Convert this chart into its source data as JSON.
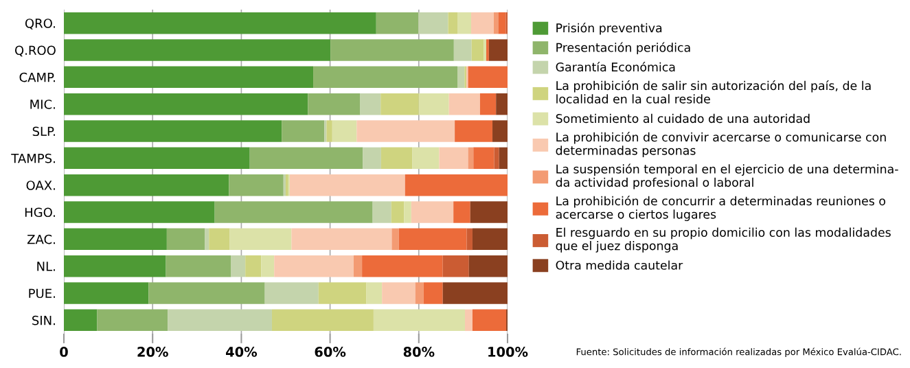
{
  "chart_data": {
    "type": "bar",
    "orientation": "horizontal",
    "stacked": true,
    "categories": [
      "QRO.",
      "Q.ROO",
      "CAMP.",
      "MIC.",
      "SLP.",
      "TAMPS.",
      "OAX.",
      "HGO.",
      "ZAC.",
      "NL.",
      "PUE.",
      "SIN."
    ],
    "series": [
      {
        "name": "Prisión preventiva",
        "color": "#4e9a35",
        "values": [
          70.4,
          60.1,
          56.2,
          55.0,
          49.1,
          41.9,
          37.2,
          34.0,
          23.2,
          23.0,
          19.1,
          7.5
        ]
      },
      {
        "name": "Presentación periódica",
        "color": "#8fb56b",
        "values": [
          9.5,
          27.8,
          32.5,
          11.8,
          9.6,
          25.5,
          12.3,
          35.6,
          8.6,
          14.7,
          26.2,
          15.9
        ]
      },
      {
        "name": "Garantía Económica",
        "color": "#c4d4ac",
        "values": [
          6.7,
          4.0,
          1.6,
          4.6,
          0.5,
          4.1,
          0.5,
          4.2,
          0.9,
          3.2,
          12.1,
          23.5
        ]
      },
      {
        "name": "La prohibición de salir sin autorización del país, de la\nlocalidad en la cual reside",
        "color": "#cfd47f",
        "values": [
          2.1,
          2.7,
          0.4,
          8.6,
          1.3,
          7.0,
          0.6,
          2.9,
          4.7,
          3.6,
          10.8,
          22.9
        ]
      },
      {
        "name": "Sometimiento al cuidado de una autoridad",
        "color": "#dce2a8",
        "values": [
          3.1,
          0.6,
          0,
          6.8,
          5.5,
          6.1,
          0.3,
          1.6,
          13.9,
          2.9,
          3.5,
          20.6
        ]
      },
      {
        "name": "La prohibición de convivir acercarse o comunicarse con\ndeterminadas personas",
        "color": "#f9c9b0",
        "values": [
          5.1,
          0,
          0.4,
          7.0,
          22.1,
          6.5,
          26.0,
          9.5,
          22.6,
          17.9,
          7.5,
          1.7
        ]
      },
      {
        "name": "La suspensión temporal en el ejercicio de una determina-\nda actividad profesional o laboral",
        "color": "#f39b73",
        "values": [
          1.0,
          0,
          0,
          0,
          0,
          1.2,
          0,
          0,
          1.6,
          1.9,
          1.9,
          0
        ]
      },
      {
        "name": "La prohibición de concurrir a determinadas reuniones o\nacercarse o ciertos lugares",
        "color": "#ec6b3a",
        "values": [
          1.7,
          0.6,
          8.9,
          3.6,
          8.5,
          4.7,
          23.1,
          3.8,
          15.3,
          18.2,
          4.3,
          7.6
        ]
      },
      {
        "name": "El resguardo en su propio domicilio con las modalidades\nque el juez disponga",
        "color": "#cb5c33",
        "values": [
          0.4,
          0,
          0,
          0,
          0,
          1.1,
          0,
          0,
          1.3,
          5.9,
          0,
          0
        ]
      },
      {
        "name": "Otra medida cautelar",
        "color": "#8a4020",
        "values": [
          0,
          4.2,
          0,
          2.6,
          3.4,
          1.9,
          0,
          8.4,
          7.9,
          8.7,
          14.6,
          0.3
        ]
      }
    ],
    "xlim": [
      0,
      100
    ],
    "xticks": [
      0,
      {
        "value": 20,
        "label": "20%"
      },
      {
        "value": 40,
        "label": "40%"
      },
      {
        "value": 60,
        "label": "60%"
      },
      {
        "value": 80,
        "label": "80%"
      },
      {
        "value": 100,
        "label": "100%"
      }
    ],
    "grid": "x",
    "legend": "right",
    "annotations": [
      "Fuente: Solicitudes de información realizadas por México Evalúa-CIDAC."
    ]
  }
}
